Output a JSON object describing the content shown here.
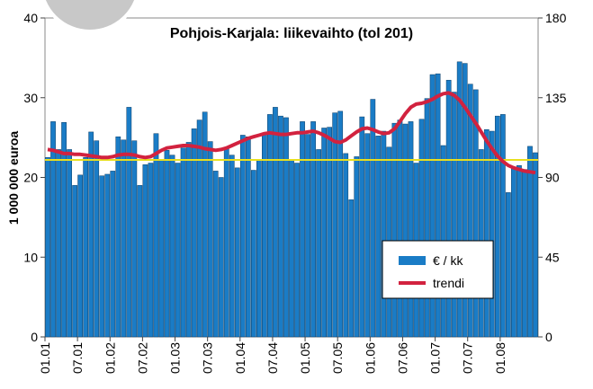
{
  "chart_data": {
    "type": "bar",
    "title": "Pohjois-Karjala: liikevaihto (tol 201)",
    "ylabel": "1 000 000 euroa",
    "categories": [
      "01.01",
      null,
      null,
      null,
      null,
      null,
      "07.01",
      null,
      null,
      null,
      null,
      null,
      "01.02",
      null,
      null,
      null,
      null,
      null,
      "07.02",
      null,
      null,
      null,
      null,
      null,
      "01.03",
      null,
      null,
      null,
      null,
      null,
      "07.03",
      null,
      null,
      null,
      null,
      null,
      "01.04",
      null,
      null,
      null,
      null,
      null,
      "07.04",
      null,
      null,
      null,
      null,
      null,
      "01.05",
      null,
      null,
      null,
      null,
      null,
      "07.05",
      null,
      null,
      null,
      null,
      null,
      "01.06",
      null,
      null,
      null,
      null,
      null,
      "07.06",
      null,
      null,
      null,
      null,
      null,
      "01.07",
      null,
      null,
      null,
      null,
      null,
      "07.07",
      null,
      null,
      null,
      null,
      null,
      "01.08",
      null,
      null,
      null,
      null,
      null,
      null
    ],
    "series": [
      {
        "name": "€ / kk",
        "color": "#1a7cc6",
        "values": [
          22.5,
          27,
          23.5,
          26.9,
          23.5,
          19,
          20.3,
          22.5,
          25.7,
          24.6,
          20.2,
          20.4,
          20.8,
          25.1,
          24.7,
          28.8,
          24.6,
          19,
          21.6,
          21.8,
          25.5,
          22.2,
          23.4,
          22.8,
          21.8,
          23.7,
          24.4,
          26.1,
          27.2,
          28.2,
          24.5,
          20.8,
          20,
          23.6,
          22.8,
          21.2,
          25.3,
          25.1,
          20.9,
          22.2,
          25.4,
          27.9,
          28.8,
          27.7,
          27.5,
          22.2,
          21.8,
          27,
          25.4,
          27,
          23.5,
          26.2,
          26.3,
          28.1,
          28.3,
          23,
          17.2,
          22.6,
          27.6,
          25.5,
          29.8,
          25.2,
          25.8,
          23.8,
          26.8,
          27.2,
          26.7,
          27,
          21.8,
          27.3,
          29.9,
          32.9,
          33,
          24,
          32.2,
          30.7,
          34.5,
          34.3,
          31.7,
          31,
          23.5,
          26,
          25.8,
          27.7,
          27.9,
          18.1,
          21.3,
          21.5,
          21,
          23.9,
          23.1
        ]
      },
      {
        "name": "trendi",
        "color": "#d2223f",
        "values": [
          23.5,
          23.4,
          23.2,
          23.0,
          23.0,
          22.9,
          22.9,
          22.8,
          22.7,
          22.6,
          22.5,
          22.5,
          22.6,
          22.8,
          22.9,
          22.9,
          22.8,
          22.6,
          22.5,
          22.6,
          23.0,
          23.4,
          23.7,
          23.8,
          23.9,
          24.0,
          24.0,
          23.9,
          23.8,
          23.6,
          23.5,
          23.4,
          23.5,
          23.7,
          24.0,
          24.3,
          24.6,
          24.9,
          25.1,
          25.3,
          25.5,
          25.6,
          25.5,
          25.4,
          25.4,
          25.5,
          25.6,
          25.6,
          25.7,
          25.8,
          25.6,
          25.3,
          24.9,
          24.5,
          24.4,
          24.7,
          25.2,
          25.7,
          26.1,
          26.2,
          26.0,
          25.7,
          25.5,
          25.6,
          26.1,
          27.0,
          28.0,
          28.8,
          29.2,
          29.3,
          29.5,
          29.8,
          30.2,
          30.5,
          30.6,
          30.3,
          29.7,
          28.8,
          27.8,
          26.8,
          25.7,
          24.6,
          23.6,
          22.7,
          22.0,
          21.5,
          21.2,
          21.0,
          20.8,
          20.7,
          20.6
        ]
      }
    ],
    "hline": {
      "value": 22.2,
      "color": "#e8e020"
    },
    "ylim": [
      0,
      40
    ],
    "yticks": [
      0,
      10,
      20,
      30,
      40
    ],
    "y2lim": [
      0,
      180
    ],
    "y2ticks": [
      0,
      45,
      90,
      135,
      180
    ]
  }
}
